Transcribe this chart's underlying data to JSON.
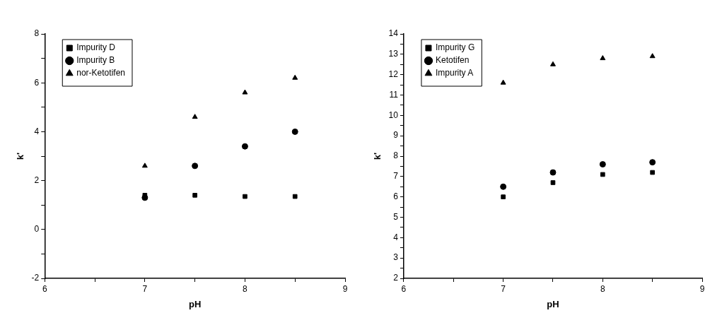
{
  "chart_data": [
    {
      "type": "scatter",
      "x": [
        7,
        7.5,
        8,
        8.5
      ],
      "xlabel": "pH",
      "ylabel": "k'",
      "xlim": [
        6,
        9
      ],
      "ylim": [
        -2,
        8
      ],
      "xticks": [
        6,
        {
          "value": 6.5,
          "label": null
        },
        7,
        {
          "value": 7.5,
          "label": null
        },
        8,
        {
          "value": 8.5,
          "label": null
        },
        9
      ],
      "yticks": [
        -2,
        {
          "value": -1,
          "label": null
        },
        0,
        {
          "value": 1,
          "label": null
        },
        2,
        {
          "value": 3,
          "label": null
        },
        4,
        {
          "value": 5,
          "label": null
        },
        6,
        {
          "value": 7,
          "label": null
        },
        8
      ],
      "grid": false,
      "legend": "top left",
      "series": [
        {
          "name": "Impurity D",
          "color": "#000000",
          "marker": "square",
          "values": [
            1.4,
            1.4,
            1.35,
            1.35
          ]
        },
        {
          "name": "Impurity B",
          "color": "#000000",
          "marker": "circle",
          "values": [
            1.3,
            2.6,
            3.4,
            4.0
          ]
        },
        {
          "name": "nor-Ketotifen",
          "color": "#000000",
          "marker": "triangle",
          "values": [
            2.6,
            4.6,
            5.6,
            6.2
          ]
        }
      ]
    },
    {
      "type": "scatter",
      "x": [
        7,
        7.5,
        8,
        8.5
      ],
      "xlabel": "pH",
      "ylabel": "k'",
      "xlim": [
        6,
        9
      ],
      "ylim": [
        2,
        14
      ],
      "xticks": [
        6,
        {
          "value": 6.5,
          "label": null
        },
        7,
        {
          "value": 7.5,
          "label": null
        },
        8,
        {
          "value": 8.5,
          "label": null
        },
        9
      ],
      "yticks": [
        2,
        {
          "value": 2.5,
          "label": null
        },
        3,
        {
          "value": 3.5,
          "label": null
        },
        4,
        {
          "value": 4.5,
          "label": null
        },
        5,
        {
          "value": 5.5,
          "label": null
        },
        6,
        {
          "value": 6.5,
          "label": null
        },
        7,
        {
          "value": 7.5,
          "label": null
        },
        8,
        {
          "value": 8.5,
          "label": null
        },
        9,
        {
          "value": 9.5,
          "label": null
        },
        10,
        {
          "value": 10.5,
          "label": null
        },
        11,
        {
          "value": 11.5,
          "label": null
        },
        12,
        {
          "value": 12.5,
          "label": null
        },
        13,
        {
          "value": 13.5,
          "label": null
        },
        14
      ],
      "grid": false,
      "legend": "top left",
      "series": [
        {
          "name": "Impurity G",
          "color": "#000000",
          "marker": "square",
          "values": [
            6.0,
            6.7,
            7.1,
            7.2
          ]
        },
        {
          "name": "Ketotifen",
          "color": "#000000",
          "marker": "circle",
          "values": [
            6.5,
            7.2,
            7.6,
            7.7
          ]
        },
        {
          "name": "Impurity A",
          "color": "#000000",
          "marker": "triangle",
          "values": [
            11.6,
            12.5,
            12.8,
            12.9
          ]
        }
      ]
    }
  ]
}
